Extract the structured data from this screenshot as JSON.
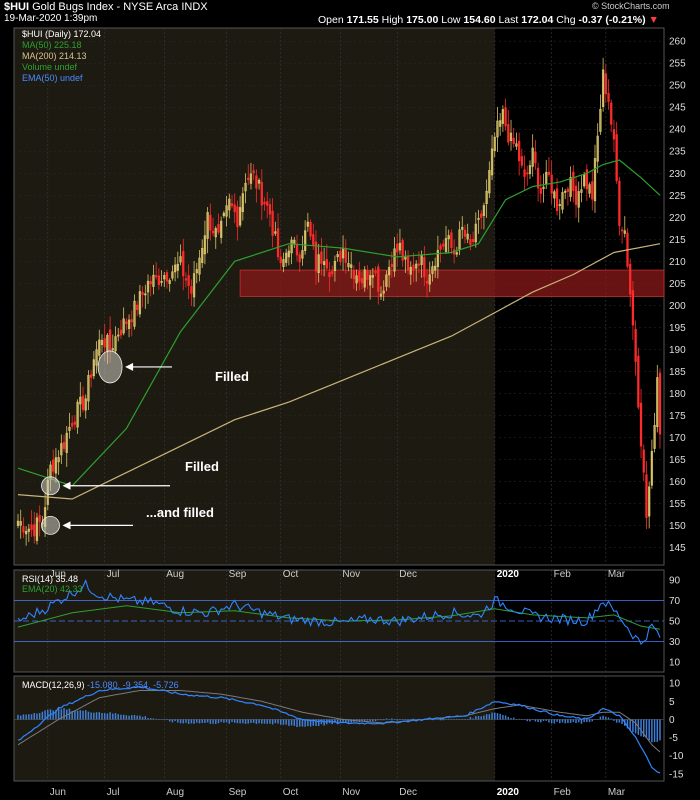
{
  "header": {
    "symbol": "$HUI",
    "name": "Gold Bugs Index - NYSE Arca",
    "exchange": "INDX",
    "date": "19-Mar-2020 1:39pm",
    "open_label": "Open",
    "open": "171.55",
    "high_label": "High",
    "high": "175.00",
    "low_label": "Low",
    "low": "154.60",
    "last_label": "Last",
    "last": "172.04",
    "chg_label": "Chg",
    "chg": "-0.37 (-0.21%)",
    "down_marker": "▼"
  },
  "watermark": "© StockCharts.com",
  "legend": {
    "price": "$HUI (Daily) 172.04",
    "ma50": "MA(50) 225.18",
    "ma200": "MA(200) 214.13",
    "volume": "Volume undef",
    "ema50": "EMA(50) undef"
  },
  "rsi_legend": {
    "rsi": "RSI(14) 35.48",
    "ema": "EMA(20) 42.33"
  },
  "macd_legend": {
    "name": "MACD(12,26,9)",
    "values": "-15.080, -9.354, -5.726"
  },
  "annotations": [
    {
      "text": "Filled"
    },
    {
      "text": "Filled"
    },
    {
      "text": "...and filled"
    }
  ],
  "colors": {
    "up": "#d9c46a",
    "down": "#ff2a2a",
    "ma50": "#2ea02e",
    "ma200": "#c8b47a",
    "rsi": "#2f86ff",
    "rsi_ema": "#2ea02e",
    "zone": "#8b1a1a",
    "bg_2019": "#1d1a12",
    "bg_2020": "#000000"
  },
  "chart_data": [
    {
      "type": "candlestick",
      "title": "$HUI (Daily) 172.04",
      "x_ticks": [
        "Jun",
        "Jul",
        "Aug",
        "Sep",
        "Oct",
        "Nov",
        "Dec",
        "2020",
        "Feb",
        "Mar"
      ],
      "y_ticks": [
        145,
        150,
        155,
        160,
        165,
        170,
        175,
        180,
        185,
        190,
        195,
        200,
        205,
        210,
        215,
        220,
        225,
        230,
        235,
        240,
        245,
        250,
        255,
        260
      ],
      "ylim": [
        141,
        263
      ],
      "path": [
        [
          0,
          151
        ],
        [
          5,
          149
        ],
        [
          9,
          151
        ],
        [
          12,
          163
        ],
        [
          17,
          169
        ],
        [
          20,
          174
        ],
        [
          25,
          179
        ],
        [
          28,
          188
        ],
        [
          31,
          193
        ],
        [
          34,
          190
        ],
        [
          37,
          194
        ],
        [
          43,
          199
        ],
        [
          48,
          205
        ],
        [
          54,
          207
        ],
        [
          60,
          209
        ],
        [
          64,
          203
        ],
        [
          67,
          211
        ],
        [
          70,
          220
        ],
        [
          74,
          215
        ],
        [
          78,
          223
        ],
        [
          81,
          220
        ],
        [
          84,
          229
        ],
        [
          87,
          229
        ],
        [
          90,
          225
        ],
        [
          93,
          221
        ],
        [
          97,
          208
        ],
        [
          100,
          214
        ],
        [
          104,
          212
        ],
        [
          107,
          218
        ],
        [
          110,
          209
        ],
        [
          113,
          212
        ],
        [
          116,
          207
        ],
        [
          120,
          213
        ],
        [
          124,
          208
        ],
        [
          127,
          206
        ],
        [
          131,
          209
        ],
        [
          134,
          203
        ],
        [
          138,
          211
        ],
        [
          141,
          213
        ],
        [
          144,
          207
        ],
        [
          148,
          211
        ],
        [
          151,
          207
        ],
        [
          154,
          211
        ],
        [
          158,
          215
        ],
        [
          161,
          212
        ],
        [
          164,
          217
        ],
        [
          167,
          213
        ],
        [
          170,
          218
        ],
        [
          173,
          225
        ],
        [
          176,
          238
        ],
        [
          179,
          243
        ],
        [
          182,
          237
        ],
        [
          184,
          236
        ],
        [
          187,
          228
        ],
        [
          190,
          234
        ],
        [
          193,
          226
        ],
        [
          196,
          229
        ],
        [
          199,
          223
        ],
        [
          203,
          228
        ],
        [
          206,
          225
        ],
        [
          209,
          229
        ],
        [
          212,
          225
        ],
        [
          214,
          238
        ],
        [
          216,
          252
        ],
        [
          218,
          247
        ],
        [
          220,
          236
        ],
        [
          222,
          220
        ],
        [
          224,
          217
        ],
        [
          226,
          203
        ],
        [
          228,
          188
        ],
        [
          230,
          170
        ],
        [
          232,
          152
        ],
        [
          234,
          165
        ],
        [
          236,
          184
        ],
        [
          237,
          172
        ]
      ],
      "price_zone": [
        202,
        208
      ],
      "ma50": {
        "name": "MA(50) 225.18",
        "points": [
          [
            0,
            163
          ],
          [
            20,
            159
          ],
          [
            40,
            172
          ],
          [
            60,
            194
          ],
          [
            80,
            210
          ],
          [
            100,
            214
          ],
          [
            120,
            213
          ],
          [
            140,
            211
          ],
          [
            160,
            212
          ],
          [
            170,
            214
          ],
          [
            180,
            224
          ],
          [
            190,
            227
          ],
          [
            200,
            228
          ],
          [
            210,
            230
          ],
          [
            216,
            232
          ],
          [
            222,
            233
          ],
          [
            226,
            231
          ],
          [
            230,
            229
          ],
          [
            237,
            225
          ]
        ]
      },
      "ma200": {
        "name": "MA(200) 214.13",
        "points": [
          [
            0,
            157
          ],
          [
            20,
            156
          ],
          [
            40,
            162
          ],
          [
            60,
            168
          ],
          [
            80,
            174
          ],
          [
            100,
            178
          ],
          [
            120,
            183
          ],
          [
            140,
            188
          ],
          [
            160,
            193
          ],
          [
            175,
            198
          ],
          [
            190,
            203
          ],
          [
            205,
            207
          ],
          [
            220,
            212
          ],
          [
            237,
            214
          ]
        ]
      },
      "circled_gaps": [
        {
          "x": 34,
          "y": 186
        },
        {
          "x": 12,
          "y": 159
        },
        {
          "x": 12,
          "y": 150
        }
      ]
    },
    {
      "type": "line",
      "name": "RSI",
      "y_ticks": [
        10,
        30,
        50,
        70,
        90
      ],
      "ylim": [
        0,
        100
      ],
      "levels": [
        30,
        70
      ],
      "series": [
        {
          "name": "RSI(14) 35.48",
          "points": [
            [
              0,
              50
            ],
            [
              10,
              62
            ],
            [
              20,
              78
            ],
            [
              25,
              85
            ],
            [
              30,
              76
            ],
            [
              40,
              70
            ],
            [
              50,
              68
            ],
            [
              60,
              60
            ],
            [
              70,
              58
            ],
            [
              80,
              66
            ],
            [
              90,
              58
            ],
            [
              100,
              52
            ],
            [
              110,
              50
            ],
            [
              120,
              48
            ],
            [
              130,
              52
            ],
            [
              140,
              50
            ],
            [
              150,
              54
            ],
            [
              160,
              58
            ],
            [
              170,
              55
            ],
            [
              176,
              70
            ],
            [
              180,
              66
            ],
            [
              190,
              55
            ],
            [
              200,
              52
            ],
            [
              210,
              50
            ],
            [
              216,
              70
            ],
            [
              222,
              55
            ],
            [
              226,
              40
            ],
            [
              230,
              28
            ],
            [
              234,
              45
            ],
            [
              237,
              35
            ]
          ]
        },
        {
          "name": "EMA(20) 42.33",
          "points": [
            [
              0,
              44
            ],
            [
              20,
              58
            ],
            [
              40,
              65
            ],
            [
              60,
              58
            ],
            [
              80,
              60
            ],
            [
              100,
              53
            ],
            [
              120,
              50
            ],
            [
              140,
              51
            ],
            [
              160,
              55
            ],
            [
              176,
              62
            ],
            [
              190,
              56
            ],
            [
              210,
              53
            ],
            [
              220,
              56
            ],
            [
              230,
              45
            ],
            [
              237,
              42
            ]
          ]
        }
      ]
    },
    {
      "type": "bar+line",
      "name": "MACD",
      "y_ticks": [
        -15,
        -10,
        -5,
        0,
        5,
        10
      ],
      "ylim": [
        -17,
        12
      ],
      "series": [
        {
          "name": "MACD",
          "points": [
            [
              0,
              -6
            ],
            [
              15,
              3
            ],
            [
              30,
              8
            ],
            [
              45,
              9
            ],
            [
              60,
              7
            ],
            [
              75,
              6
            ],
            [
              90,
              4
            ],
            [
              105,
              0
            ],
            [
              120,
              -1
            ],
            [
              135,
              -1
            ],
            [
              150,
              0
            ],
            [
              165,
              1
            ],
            [
              176,
              5
            ],
            [
              185,
              4
            ],
            [
              200,
              1
            ],
            [
              210,
              0
            ],
            [
              216,
              3
            ],
            [
              222,
              1
            ],
            [
              228,
              -5
            ],
            [
              234,
              -13
            ],
            [
              237,
              -15
            ]
          ]
        },
        {
          "name": "Signal",
          "points": [
            [
              0,
              -7
            ],
            [
              15,
              0
            ],
            [
              30,
              6
            ],
            [
              45,
              8
            ],
            [
              60,
              8
            ],
            [
              75,
              7
            ],
            [
              90,
              5
            ],
            [
              105,
              2
            ],
            [
              120,
              0
            ],
            [
              135,
              -1
            ],
            [
              150,
              0
            ],
            [
              165,
              1
            ],
            [
              176,
              3
            ],
            [
              185,
              4
            ],
            [
              200,
              2
            ],
            [
              210,
              1
            ],
            [
              216,
              2
            ],
            [
              222,
              2
            ],
            [
              228,
              -1
            ],
            [
              234,
              -7
            ],
            [
              237,
              -9
            ]
          ]
        }
      ]
    }
  ]
}
